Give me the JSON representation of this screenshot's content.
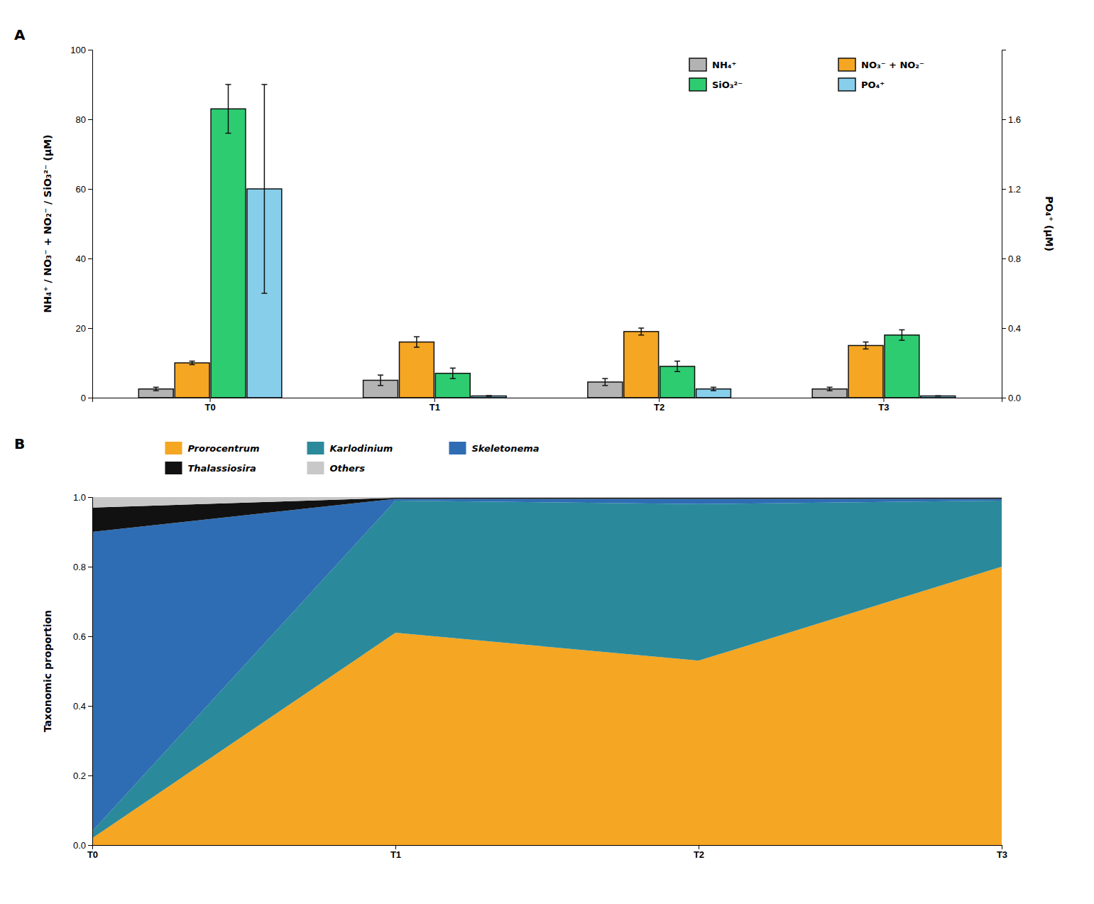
{
  "chart_data": [
    {
      "type": "bar",
      "title": "A",
      "categories": [
        "T0",
        "T1",
        "T2",
        "T3"
      ],
      "series": [
        {
          "name": "NH₄⁺",
          "color": "#b3b3b3",
          "values": [
            2.5,
            5.0,
            4.5,
            2.5
          ],
          "errors": [
            0.5,
            1.5,
            1.0,
            0.5
          ]
        },
        {
          "name": "NO₃⁻ + NO₂⁻",
          "color": "#f5a623",
          "values": [
            10.0,
            16.0,
            19.0,
            15.0
          ],
          "errors": [
            0.5,
            1.5,
            1.0,
            1.0
          ]
        },
        {
          "name": "SiO₃²⁻",
          "color": "#2ecc71",
          "values": [
            83.0,
            7.0,
            9.0,
            18.0
          ],
          "errors": [
            7.0,
            1.5,
            1.5,
            1.5
          ]
        },
        {
          "name": "PO₄⁺",
          "color": "#87ceeb",
          "values": [
            1.2,
            0.01,
            0.05,
            0.01
          ],
          "errors": [
            0.6,
            0.002,
            0.01,
            0.001
          ],
          "axis": "y2"
        }
      ],
      "ylabel": "NH₄⁺ / NO₃⁻ + NO₂⁻ / SiO₃²⁻ (μM)",
      "y2label": "PO₄⁺ (μM)",
      "ylim": [
        0,
        100
      ],
      "yticks": [
        0,
        20,
        40,
        60,
        80,
        100
      ],
      "y2lim": [
        0,
        2.0
      ],
      "y2ticks": [
        {
          "value": 0,
          "label": "0.0"
        },
        0.4,
        0.8,
        1.2,
        1.6
      ],
      "legend": "upper right",
      "grid": false
    },
    {
      "type": "area",
      "title": "B",
      "stacked": true,
      "x": [
        0,
        1,
        2,
        3
      ],
      "series": [
        {
          "name": "Prorocentrum",
          "color": "#f5a623",
          "values": [
            0.02,
            0.61,
            0.53,
            0.8
          ]
        },
        {
          "name": "Karlodinium",
          "color": "#2a8a9b",
          "values": [
            0.02,
            0.38,
            0.45,
            0.19
          ]
        },
        {
          "name": "Skeletonema",
          "color": "#2e6db4",
          "values": [
            0.86,
            0.005,
            0.015,
            0.005
          ]
        },
        {
          "name": "Thalassiosira",
          "color": "#111111",
          "values": [
            0.07,
            0.003,
            0.003,
            0.003
          ]
        },
        {
          "name": "Others",
          "color": "#c8c8c8",
          "values": [
            0.03,
            0.002,
            0.002,
            0.002
          ]
        }
      ],
      "ylabel": "Taxonomic proportion",
      "xlim": [
        0,
        3
      ],
      "xticks": [
        {
          "value": 0,
          "label": "T0"
        },
        {
          "value": 1,
          "label": "T1"
        },
        {
          "value": 2,
          "label": "T2"
        },
        {
          "value": 3,
          "label": "T3"
        }
      ],
      "ylim": [
        0,
        1.0
      ],
      "yticks": [
        {
          "value": 0,
          "label": "0.0"
        },
        0.2,
        0.4,
        0.6,
        0.8,
        {
          "value": 1,
          "label": "1.0"
        }
      ],
      "legend": "upper left",
      "grid": false
    }
  ]
}
